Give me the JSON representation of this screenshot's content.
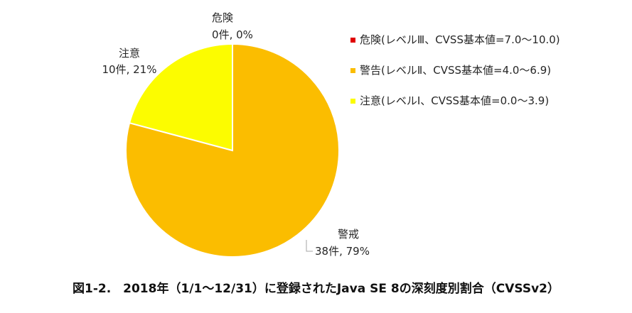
{
  "chart_data": {
    "type": "pie",
    "caption": "図1-2.　2018年（1/1～12/31）に登録されたJava SE 8の深刻度別割合（CVSSv2）",
    "slices": [
      {
        "name": "危険",
        "count": 0,
        "percent": 0,
        "label": "0件, 0%",
        "color": "#e00000"
      },
      {
        "name": "警戒",
        "count": 38,
        "percent": 79,
        "label": "38件, 79%",
        "color": "#fbbd00"
      },
      {
        "name": "注意",
        "count": 10,
        "percent": 21,
        "label": "10件, 21%",
        "color": "#fcfc00"
      }
    ],
    "legend": {
      "placement": "right",
      "entries": [
        {
          "label": "危険(レベルⅢ、CVSS基本値=7.0～10.0)",
          "color": "#e00000"
        },
        {
          "label": "警告(レベルⅡ、CVSS基本値=4.0～6.9)",
          "color": "#fbbd00"
        },
        {
          "label": "注意(レベルⅠ、CVSS基本値=0.0～3.9)",
          "color": "#fcfc00"
        }
      ]
    }
  }
}
